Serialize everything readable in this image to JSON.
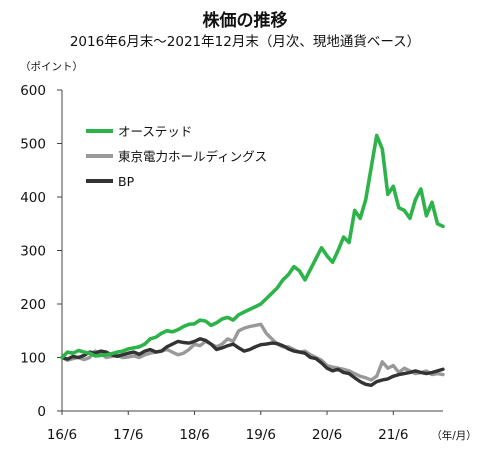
{
  "chart_data": {
    "type": "line",
    "title": "株価の推移",
    "subtitle": "2016年6月末～2021年12月末（月次、現地通貨ベース）",
    "ylabel": "（ポイント）",
    "xlabel": "（年/月）",
    "ylim": [
      0,
      600
    ],
    "yticks": [
      "0",
      "100",
      "200",
      "300",
      "400",
      "500",
      "600"
    ],
    "xticks": [
      "16/6",
      "17/6",
      "18/6",
      "19/6",
      "20/6",
      "21/6"
    ],
    "legend_position": "upper-left",
    "series": [
      {
        "name": "オーステッド",
        "color": "#2db34a",
        "values": [
          100,
          110,
          108,
          113,
          110,
          108,
          103,
          104,
          105,
          107,
          110,
          112,
          116,
          118,
          120,
          125,
          135,
          138,
          145,
          150,
          148,
          152,
          158,
          162,
          163,
          170,
          168,
          160,
          165,
          172,
          175,
          170,
          180,
          185,
          190,
          195,
          200,
          210,
          220,
          230,
          245,
          255,
          270,
          262,
          245,
          265,
          285,
          305,
          290,
          278,
          300,
          325,
          315,
          375,
          360,
          395,
          455,
          515,
          490,
          405,
          420,
          380,
          375,
          360,
          395,
          415,
          365,
          390,
          350,
          345
        ]
      },
      {
        "name": "東京電力ホールディングス",
        "color": "#999999",
        "values": [
          100,
          95,
          98,
          100,
          96,
          100,
          112,
          108,
          100,
          102,
          104,
          100,
          101,
          103,
          100,
          105,
          108,
          110,
          112,
          115,
          110,
          105,
          108,
          115,
          125,
          122,
          130,
          125,
          120,
          125,
          135,
          130,
          150,
          155,
          158,
          160,
          162,
          145,
          135,
          125,
          120,
          120,
          115,
          110,
          112,
          105,
          100,
          95,
          85,
          82,
          80,
          78,
          75,
          70,
          65,
          62,
          58,
          65,
          92,
          80,
          85,
          72,
          80,
          75,
          70,
          72,
          75,
          68,
          70,
          68
        ]
      },
      {
        "name": "BP",
        "color": "#333333",
        "values": [
          100,
          97,
          102,
          100,
          104,
          110,
          108,
          112,
          110,
          105,
          102,
          105,
          108,
          110,
          106,
          112,
          115,
          110,
          112,
          120,
          125,
          130,
          128,
          127,
          130,
          135,
          132,
          125,
          115,
          118,
          122,
          125,
          118,
          112,
          115,
          120,
          124,
          125,
          127,
          126,
          122,
          116,
          112,
          110,
          108,
          100,
          98,
          90,
          80,
          75,
          78,
          72,
          70,
          62,
          55,
          50,
          48,
          55,
          58,
          60,
          65,
          68,
          70,
          72,
          75,
          72,
          70,
          72,
          75,
          78
        ]
      }
    ]
  }
}
